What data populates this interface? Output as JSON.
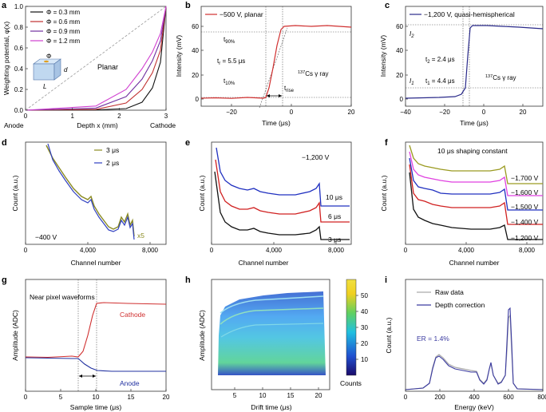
{
  "panels": [
    {
      "letter": "a",
      "chart_data": {
        "type": "line",
        "xlabel": "Depth x (mm)",
        "ylabel": "Weighting potential, φ(x)",
        "xlim": [
          0,
          3
        ],
        "ylim": [
          0,
          1
        ],
        "x_ticks": [
          "0",
          "1",
          "2",
          "3"
        ],
        "y_ticks": [
          "0.0",
          "0.2",
          "0.4",
          "0.6",
          "0.8",
          "1.0"
        ],
        "x_end_labels": [
          "Anode",
          "Cathode"
        ],
        "series": [
          {
            "name": "Φ = 0.3 mm",
            "color": "#111111",
            "points": [
              [
                0,
                0
              ],
              [
                1,
                0.002
              ],
              [
                2,
                0.02
              ],
              [
                2.5,
                0.09
              ],
              [
                2.75,
                0.22
              ],
              [
                2.9,
                0.46
              ],
              [
                3,
                1
              ]
            ]
          },
          {
            "name": "Φ = 0.6 mm",
            "color": "#c03030",
            "points": [
              [
                0,
                0
              ],
              [
                1,
                0.008
              ],
              [
                2,
                0.07
              ],
              [
                2.5,
                0.2
              ],
              [
                2.75,
                0.36
              ],
              [
                2.9,
                0.58
              ],
              [
                3,
                1
              ]
            ]
          },
          {
            "name": "Φ = 0.9 mm",
            "color": "#7030a0",
            "points": [
              [
                0,
                0
              ],
              [
                1,
                0.02
              ],
              [
                2,
                0.13
              ],
              [
                2.5,
                0.3
              ],
              [
                2.75,
                0.47
              ],
              [
                2.9,
                0.67
              ],
              [
                3,
                1
              ]
            ]
          },
          {
            "name": "Φ = 1.2 mm",
            "color": "#d040d0",
            "points": [
              [
                0,
                0
              ],
              [
                1,
                0.04
              ],
              [
                2,
                0.2
              ],
              [
                2.5,
                0.4
              ],
              [
                2.75,
                0.56
              ],
              [
                2.9,
                0.74
              ],
              [
                3,
                1
              ]
            ]
          },
          {
            "name": "Planar",
            "color": "#999999",
            "dash": true,
            "points": [
              [
                0,
                0
              ],
              [
                3,
                1
              ]
            ]
          }
        ],
        "annotations": [
          "Planar",
          "Φ",
          "d",
          "L"
        ]
      }
    },
    {
      "letter": "b",
      "chart_data": {
        "type": "line",
        "xlabel": "Time (μs)",
        "ylabel": "Intensity (mV)",
        "xlim": [
          -30,
          20
        ],
        "ylim": [
          -5,
          65
        ],
        "x_ticks": [
          "−20",
          "0",
          "20"
        ],
        "y_ticks": [
          "0",
          "20",
          "40",
          "60"
        ],
        "series": [
          {
            "name": "−500 V, planar",
            "color": "#d03030",
            "points": [
              [
                -30,
                0
              ],
              [
                -10.5,
                0.5
              ],
              [
                -3.5,
                55
              ],
              [
                0,
                56.5
              ],
              [
                10,
                56
              ],
              [
                20,
                55
              ]
            ]
          }
        ],
        "annotations": [
          "t90%",
          "t10%",
          "tr = 5.5 μs",
          "trise",
          "137Cs γ ray"
        ]
      }
    },
    {
      "letter": "c",
      "chart_data": {
        "type": "line",
        "xlabel": "Time (μs)",
        "ylabel": "Intensity (mV)",
        "xlim": [
          -40,
          30
        ],
        "ylim": [
          -5,
          65
        ],
        "x_ticks": [
          "−40",
          "−20",
          "0",
          "20"
        ],
        "y_ticks": [
          "0",
          "20",
          "40",
          "60"
        ],
        "series": [
          {
            "name": "−1,200 V, quasi-hemispherical",
            "color": "#303090",
            "points": [
              [
                -40,
                0
              ],
              [
                -10,
                1
              ],
              [
                -7,
                4
              ],
              [
                -6,
                8
              ],
              [
                -5,
                40
              ],
              [
                -4.3,
                55
              ],
              [
                0,
                55
              ],
              [
                15,
                53.5
              ],
              [
                30,
                52
              ]
            ]
          }
        ],
        "annotations": [
          "I2",
          "I1",
          "t2 = 2.4 μs",
          "t1 = 4.4 μs",
          "137Cs γ ray"
        ]
      }
    },
    {
      "letter": "d",
      "chart_data": {
        "type": "line",
        "xlabel": "Channel number",
        "ylabel": "Count (a.u.)",
        "xlim": [
          0,
          9000
        ],
        "x_ticks": [
          "0",
          "4,000",
          "8,000"
        ],
        "series": [
          {
            "name": "3 μs",
            "color": "#8a8a20"
          },
          {
            "name": "2 μs",
            "color": "#3040c0"
          }
        ],
        "annotations": [
          "−400 V",
          "x5"
        ]
      }
    },
    {
      "letter": "e",
      "chart_data": {
        "type": "line",
        "xlabel": "Channel number",
        "ylabel": "Count (a.u.)",
        "xlim": [
          0,
          9000
        ],
        "x_ticks": [
          "0",
          "4,000",
          "8,000"
        ],
        "series": [
          {
            "name": "10 μs",
            "color": "#2030c0"
          },
          {
            "name": "6 μs",
            "color": "#d02020"
          },
          {
            "name": "3 μs",
            "color": "#111111"
          }
        ],
        "annotations": [
          "−1,200 V"
        ]
      }
    },
    {
      "letter": "f",
      "chart_data": {
        "type": "line",
        "xlabel": "Channel number",
        "ylabel": "Count (a.u.)",
        "xlim": [
          0,
          9000
        ],
        "x_ticks": [
          "0",
          "4,000",
          "8,000"
        ],
        "series": [
          {
            "name": "−1,700 V",
            "color": "#9a9a20"
          },
          {
            "name": "−1,600 V",
            "color": "#e040e0"
          },
          {
            "name": "−1,500 V",
            "color": "#2030c0"
          },
          {
            "name": "−1,400 V",
            "color": "#d02020"
          },
          {
            "name": "−1,200 V",
            "color": "#111111"
          }
        ],
        "annotations": [
          "10 μs shaping constant"
        ]
      }
    },
    {
      "letter": "g",
      "chart_data": {
        "type": "line",
        "xlabel": "Sample time (μs)",
        "ylabel": "Amplitude (ADC)",
        "xlim": [
          0,
          20
        ],
        "x_ticks": [
          "0",
          "5",
          "10",
          "15",
          "20"
        ],
        "series": [
          {
            "name": "Cathode",
            "color": "#d03030",
            "points": [
              [
                0,
                0.5
              ],
              [
                7.5,
                0.5
              ],
              [
                8.5,
                0.6
              ],
              [
                9.5,
                0.8
              ],
              [
                10.2,
                0.9
              ],
              [
                11,
                0.91
              ],
              [
                20,
                0.89
              ]
            ]
          },
          {
            "name": "Anode",
            "color": "#2030a0",
            "points": [
              [
                0,
                0.5
              ],
              [
                7.5,
                0.49
              ],
              [
                9,
                0.44
              ],
              [
                10,
                0.42
              ],
              [
                11,
                0.41
              ],
              [
                20,
                0.41
              ]
            ]
          }
        ],
        "annotations": [
          "Near pixel waveforms"
        ]
      }
    },
    {
      "letter": "h",
      "chart_data": {
        "type": "heatmap",
        "xlabel": "Drift time (μs)",
        "ylabel": "Amplitude (ADC)",
        "xlim": [
          1,
          22
        ],
        "x_ticks": [
          "5",
          "10",
          "15",
          "20"
        ],
        "colorbar_ticks": [
          "10",
          "20",
          "30",
          "40",
          "50"
        ],
        "colorbar_range": [
          0,
          60
        ],
        "colorbar_label": "Counts"
      }
    },
    {
      "letter": "i",
      "chart_data": {
        "type": "line",
        "xlabel": "Energy (keV)",
        "ylabel": "Count (a.u.)",
        "xlim": [
          0,
          800
        ],
        "x_ticks": [
          "0",
          "200",
          "400",
          "600",
          "800"
        ],
        "series": [
          {
            "name": "Raw data",
            "color": "#aaaaaa"
          },
          {
            "name": "Depth correction",
            "color": "#3a3aa0"
          }
        ],
        "annotations": [
          "ER = 1.4%"
        ]
      }
    }
  ]
}
